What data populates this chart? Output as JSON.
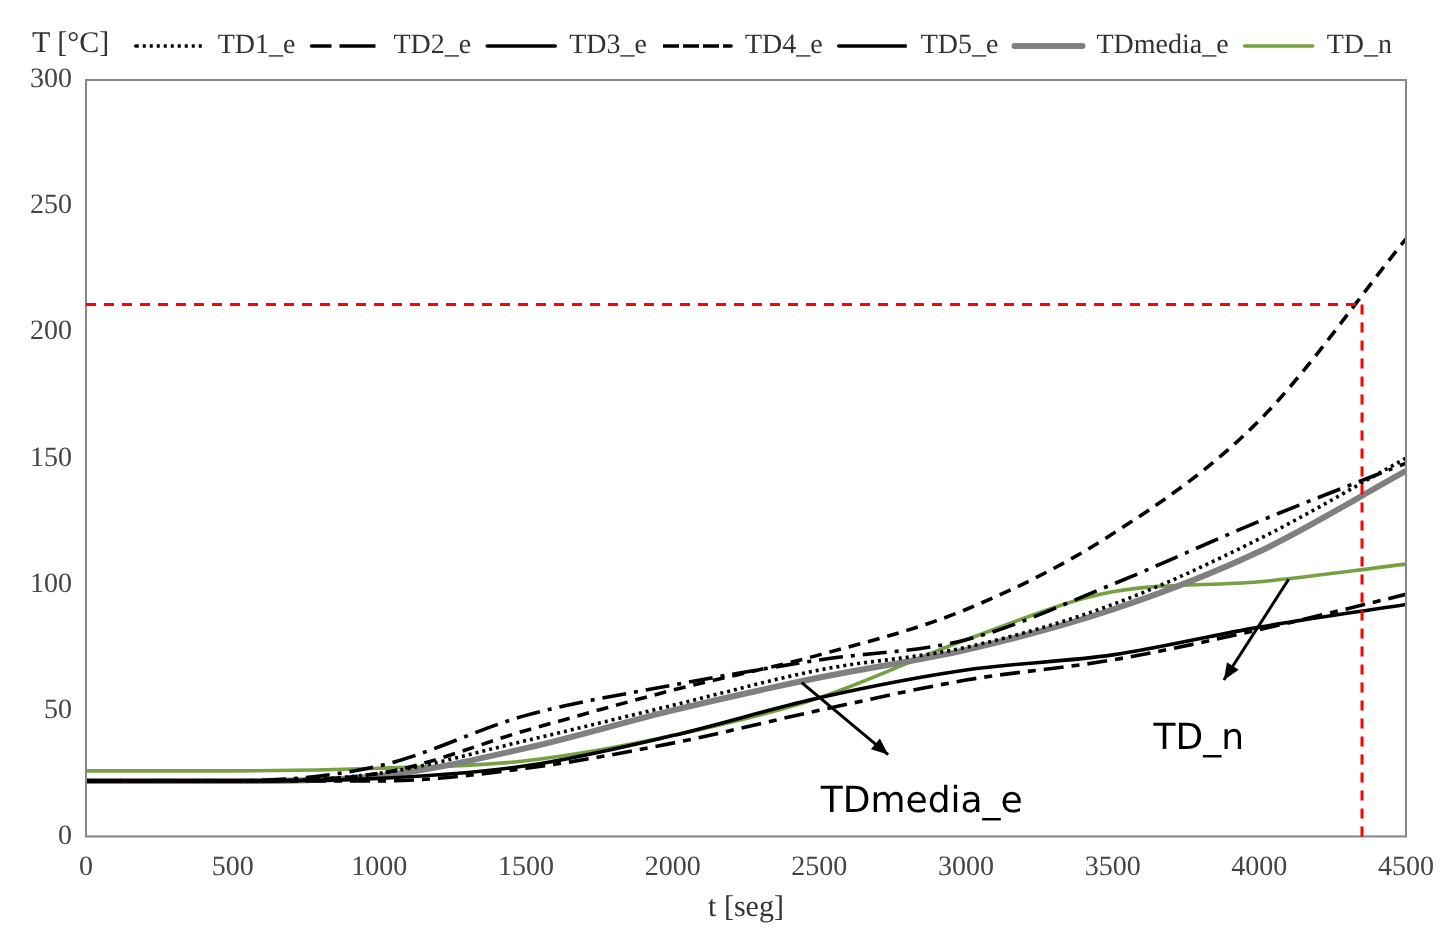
{
  "chart_data": {
    "type": "line",
    "xlabel": "t [seg]",
    "ylabel": "T [°C]",
    "x": [
      0,
      500,
      1000,
      1500,
      2000,
      2500,
      3000,
      3500,
      4000,
      4500
    ],
    "xlim": [
      0,
      4500
    ],
    "xticks": [
      0,
      500,
      1000,
      1500,
      2000,
      2500,
      3000,
      3500,
      4000,
      4500
    ],
    "ylim": [
      0,
      300
    ],
    "yticks": [
      0,
      50,
      100,
      150,
      200,
      250,
      300
    ],
    "grid": false,
    "legend": "top",
    "marker": "none",
    "series": [
      {
        "name": "TD1_e",
        "color": "#000000",
        "line_style": "dotted",
        "values": [
          22,
          22,
          25,
          38,
          52,
          66,
          75,
          92,
          118,
          150
        ]
      },
      {
        "name": "TD2_e",
        "color": "#000000",
        "line_style": "dashed",
        "values": [
          22,
          22,
          22,
          27,
          37,
          50,
          62,
          70,
          82,
          96
        ]
      },
      {
        "name": "TD3_e",
        "color": "#000000",
        "line_style": "solid",
        "values": [
          22,
          22,
          23,
          28,
          40,
          55,
          66,
          72,
          83,
          92
        ]
      },
      {
        "name": "TD4_e",
        "color": "#000000",
        "line_style": "dashed",
        "values": [
          22,
          22,
          25,
          42,
          58,
          72,
          90,
          120,
          165,
          237
        ]
      },
      {
        "name": "TD5_e",
        "color": "#000000",
        "line_style": "dashed",
        "values": [
          22,
          22,
          28,
          48,
          60,
          70,
          78,
          100,
          125,
          148
        ]
      },
      {
        "name": "TDmedia_e",
        "color": "#808080",
        "line_style": "solid",
        "values": [
          22,
          22,
          24,
          35,
          50,
          63,
          74,
          90,
          113,
          145
        ]
      },
      {
        "name": "TD_n",
        "color": "#77a043",
        "line_style": "solid",
        "values": [
          26,
          26,
          27,
          30,
          40,
          55,
          78,
          97,
          101,
          108
        ]
      }
    ],
    "ref_lines": [
      {
        "axis": "y",
        "value": 211,
        "color": "#ff0000",
        "line_style": "dashed"
      },
      {
        "axis": "x",
        "value": 4350,
        "color": "#ff0000",
        "line_style": "dashed"
      }
    ],
    "annotations": [
      {
        "text": "TDmedia_e",
        "x": 2440,
        "y": 61
      },
      {
        "text": "TD_n",
        "x": 4100,
        "y": 102
      }
    ]
  }
}
